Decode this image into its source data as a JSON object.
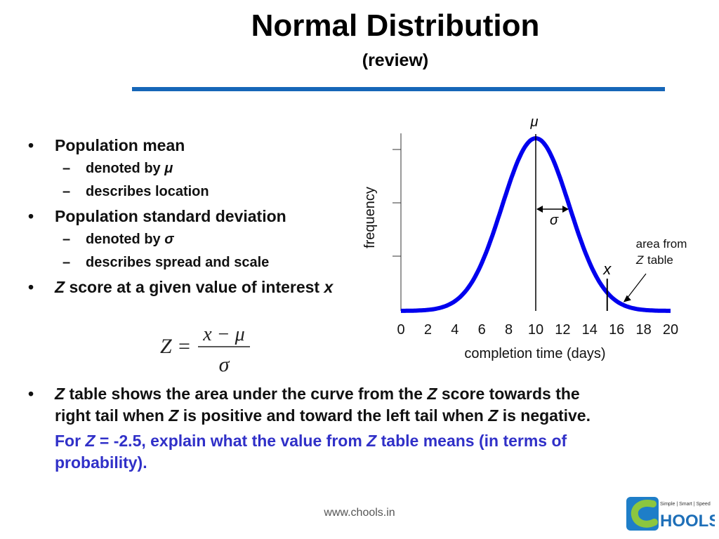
{
  "slide": {
    "title": "Normal Distribution",
    "subtitle": "(review)"
  },
  "bullets": {
    "mean": {
      "label": "Population mean",
      "sub1_prefix": "denoted by",
      "sub1_symbol": "μ",
      "sub2": "describes location"
    },
    "sd": {
      "label": "Population standard deviation",
      "sub1_prefix": "denoted by",
      "sub1_symbol": "σ",
      "sub2": "describes spread and scale"
    },
    "z": {
      "z": "Z",
      "middle": "score at a given value of interest",
      "x": "x"
    },
    "bullet_char": "•",
    "dash_char": "–"
  },
  "formula": {
    "lhs": "Z",
    "eq": "=",
    "numerator": "x − μ",
    "denominator": "σ"
  },
  "bottom": {
    "line1_z": "Z",
    "line1_a": "table shows the area under the curve from the",
    "line1_z2": "Z",
    "line1_b": "score towards the",
    "line2_a": "right tail when",
    "line2_z": "Z",
    "line2_b": "is positive and toward the left tail when",
    "line2_z2": "Z",
    "line2_c": "is negative.",
    "q_a": "For",
    "q_z": "Z",
    "q_b": "= -2.5, explain what the value from",
    "q_z2": "Z",
    "q_c": "table means (in terms of",
    "q_d": "probability)."
  },
  "footer": {
    "url": "www.chools.in"
  },
  "logo": {
    "tagline": "Simple | Smart | Speed",
    "name": "HOOLS"
  },
  "colors": {
    "accent": "#1666b8",
    "curve": "#0000ee",
    "question": "#3030c8"
  },
  "chart_data": {
    "type": "line",
    "title": "",
    "xlabel": "completion time (days)",
    "ylabel": "frequency",
    "xlim": [
      0,
      20
    ],
    "xticks": [
      "0",
      "2",
      "4",
      "6",
      "8",
      "10",
      "12",
      "14",
      "16",
      "18",
      "20"
    ],
    "series": [
      {
        "name": "normal curve",
        "mean": 10,
        "sd": 2.5
      }
    ],
    "annotations": {
      "mu": "μ",
      "sigma": "σ",
      "x_label": "x",
      "x_value": 15.3,
      "area_line1": "area from",
      "area_z": "Z",
      "area_line2": "table"
    }
  }
}
